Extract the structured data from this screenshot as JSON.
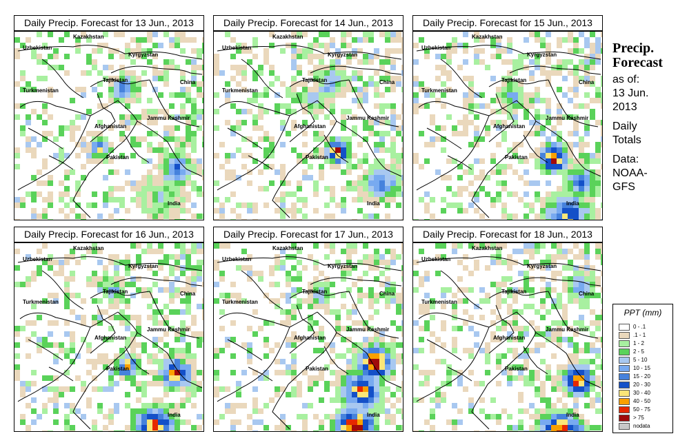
{
  "panels": [
    {
      "title": "Daily Precip. Forecast for  13 Jun., 2013"
    },
    {
      "title": "Daily Precip. Forecast for  14 Jun., 2013"
    },
    {
      "title": "Daily Precip. Forecast for  15 Jun., 2013"
    },
    {
      "title": "Daily Precip. Forecast for  16 Jun., 2013"
    },
    {
      "title": "Daily Precip. Forecast for  17 Jun., 2013"
    },
    {
      "title": "Daily Precip. Forecast for  18 Jun., 2013"
    }
  ],
  "map_labels": {
    "kazakhstan": "Kazakhstan",
    "uzbekistan": "Uzbekistan",
    "kyrgyzstan": "Kyrgyzstan",
    "tajikistan": "Tajikistan",
    "turkmenistan": "Turkmenistan",
    "china": "China",
    "afghanistan": "Afghanistan",
    "jammu_kashmir": "Jammu Kashmir",
    "pakistan": "Pakistan",
    "india": "India"
  },
  "side": {
    "title": "Precip.\nForecast",
    "as_of": "as of:\n13 Jun.\n2013",
    "totals": "Daily\nTotals",
    "data_src": "Data:\nNOAA-\nGFS"
  },
  "legend": {
    "title": "PPT (mm)",
    "items": [
      {
        "label": "0 - .1",
        "color": "#ffffff"
      },
      {
        "label": ".1 - 1",
        "color": "#ead8bc"
      },
      {
        "label": "1 - 2",
        "color": "#a8f0a0"
      },
      {
        "label": "2 - 5",
        "color": "#5ad25a"
      },
      {
        "label": "5 - 10",
        "color": "#a8c8f0"
      },
      {
        "label": "10 - 15",
        "color": "#78aaf0"
      },
      {
        "label": "15 - 20",
        "color": "#4682dc"
      },
      {
        "label": "20 - 30",
        "color": "#1450c8"
      },
      {
        "label": "30 - 40",
        "color": "#fae678"
      },
      {
        "label": "40 - 50",
        "color": "#faa000"
      },
      {
        "label": "50 - 75",
        "color": "#e62800"
      },
      {
        "label": "> 75",
        "color": "#a00a0a"
      },
      {
        "label": "nodata",
        "color": "#c8c8c8"
      }
    ]
  }
}
